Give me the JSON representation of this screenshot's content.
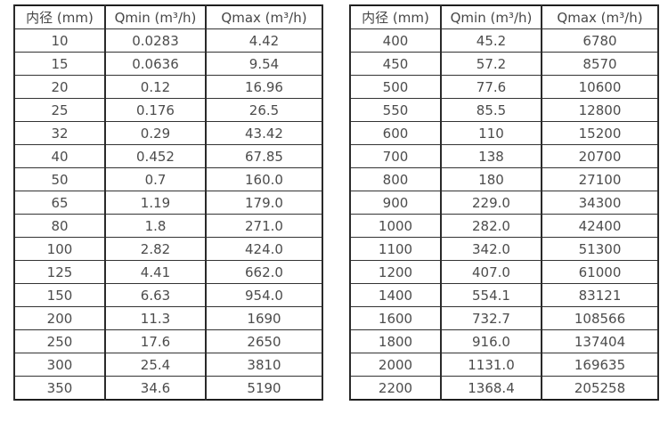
{
  "page": {
    "background_color": "#ffffff",
    "text_color": "#4c4c4c",
    "border_color": "#2a2a2a"
  },
  "chart_data": [
    {
      "type": "table",
      "title": "",
      "columns": [
        "内径 (mm)",
        "Qmin (m³/h)",
        "Qmax (m³/h)"
      ],
      "rows": [
        [
          "10",
          "0.0283",
          "4.42"
        ],
        [
          "15",
          "0.0636",
          "9.54"
        ],
        [
          "20",
          "0.12",
          "16.96"
        ],
        [
          "25",
          "0.176",
          "26.5"
        ],
        [
          "32",
          "0.29",
          "43.42"
        ],
        [
          "40",
          "0.452",
          "67.85"
        ],
        [
          "50",
          "0.7",
          "160.0"
        ],
        [
          "65",
          "1.19",
          "179.0"
        ],
        [
          "80",
          "1.8",
          "271.0"
        ],
        [
          "100",
          "2.82",
          "424.0"
        ],
        [
          "125",
          "4.41",
          "662.0"
        ],
        [
          "150",
          "6.63",
          "954.0"
        ],
        [
          "200",
          "11.3",
          "1690"
        ],
        [
          "250",
          "17.6",
          "2650"
        ],
        [
          "300",
          "25.4",
          "3810"
        ],
        [
          "350",
          "34.6",
          "5190"
        ]
      ]
    },
    {
      "type": "table",
      "title": "",
      "columns": [
        "内径 (mm)",
        "Qmin (m³/h)",
        "Qmax (m³/h)"
      ],
      "rows": [
        [
          "400",
          "45.2",
          "6780"
        ],
        [
          "450",
          "57.2",
          "8570"
        ],
        [
          "500",
          "77.6",
          "10600"
        ],
        [
          "550",
          "85.5",
          "12800"
        ],
        [
          "600",
          "110",
          "15200"
        ],
        [
          "700",
          "138",
          "20700"
        ],
        [
          "800",
          "180",
          "27100"
        ],
        [
          "900",
          "229.0",
          "34300"
        ],
        [
          "1000",
          "282.0",
          "42400"
        ],
        [
          "1100",
          "342.0",
          "51300"
        ],
        [
          "1200",
          "407.0",
          "61000"
        ],
        [
          "1400",
          "554.1",
          "83121"
        ],
        [
          "1600",
          "732.7",
          "108566"
        ],
        [
          "1800",
          "916.0",
          "137404"
        ],
        [
          "2000",
          "1131.0",
          "169635"
        ],
        [
          "2200",
          "1368.4",
          "205258"
        ]
      ]
    }
  ]
}
